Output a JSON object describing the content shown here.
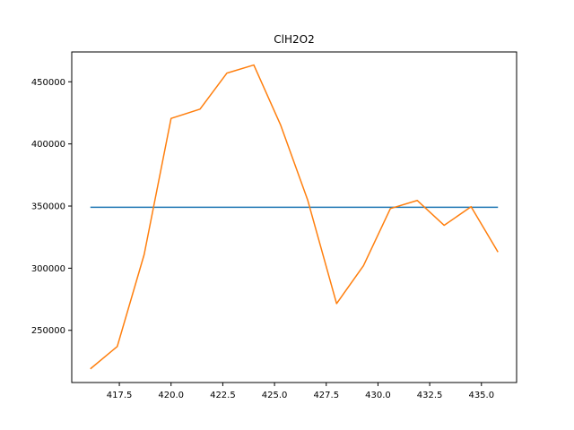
{
  "chart_data": {
    "type": "line",
    "title": "ClH2O2",
    "xlabel": "",
    "ylabel": "",
    "xlim": [
      415.2,
      436.7
    ],
    "ylim": [
      208000,
      474000
    ],
    "x_ticks": [
      417.5,
      420.0,
      422.5,
      425.0,
      427.5,
      430.0,
      432.5,
      435.0
    ],
    "x_tick_labels": [
      "417.5",
      "420.0",
      "422.5",
      "425.0",
      "427.5",
      "430.0",
      "432.5",
      "435.0"
    ],
    "y_ticks": [
      250000,
      300000,
      350000,
      400000,
      450000
    ],
    "y_tick_labels": [
      "250000",
      "300000",
      "350000",
      "400000",
      "450000"
    ],
    "grid": false,
    "series": [
      {
        "color": "#1f77b4",
        "x": [
          416.1,
          435.8
        ],
        "y": [
          349000,
          349000
        ]
      },
      {
        "color": "#ff7f0e",
        "x": [
          416.1,
          417.4,
          418.7,
          420.0,
          421.4,
          422.7,
          424.0,
          425.3,
          426.6,
          428.0,
          429.3,
          430.6,
          431.9,
          433.2,
          434.5,
          435.8
        ],
        "y": [
          219000,
          237000,
          311000,
          420500,
          428000,
          457000,
          463500,
          415000,
          355000,
          271500,
          302000,
          348000,
          354500,
          334500,
          349500,
          313000
        ]
      }
    ]
  }
}
